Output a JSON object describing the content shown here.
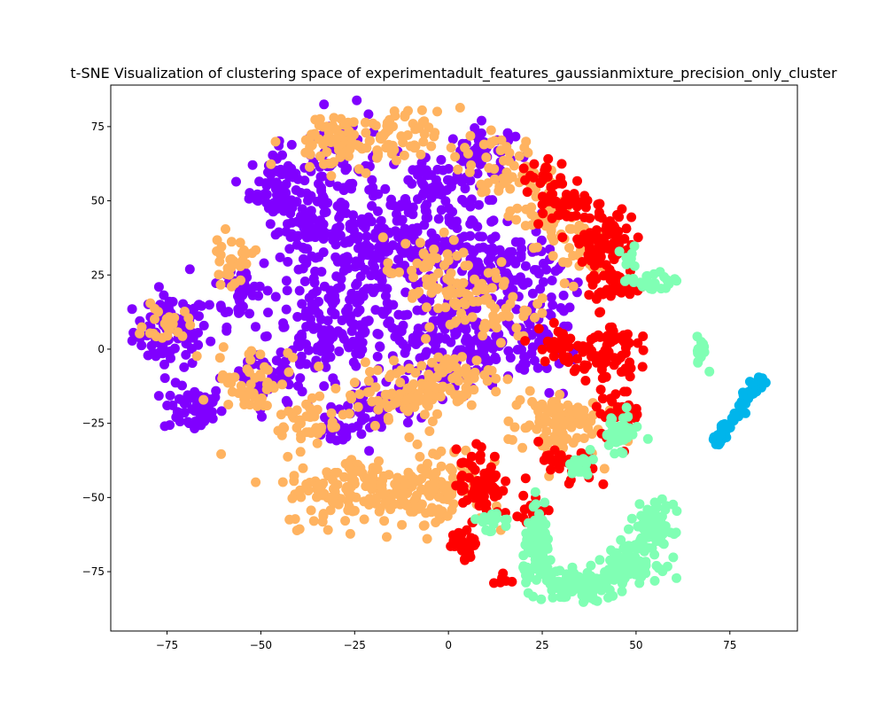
{
  "chart_data": {
    "type": "scatter",
    "title": "t-SNE Visualization of clustering space of experimentadult_features_gaussianmixture_precision_only_cluster",
    "xlabel": "",
    "ylabel": "",
    "xlim": [
      -90,
      93
    ],
    "ylim": [
      -95,
      89
    ],
    "xticks": [
      -75,
      -50,
      -25,
      0,
      25,
      50,
      75
    ],
    "yticks": [
      -75,
      -50,
      -25,
      0,
      25,
      50,
      75
    ],
    "xtick_labels": [
      "−75",
      "−50",
      "−25",
      "0",
      "25",
      "50",
      "75"
    ],
    "ytick_labels": [
      "−75",
      "−50",
      "−25",
      "0",
      "25",
      "50",
      "75"
    ],
    "grid": false,
    "legend": "none",
    "series": [
      {
        "color": "#8000ff",
        "clusters": [
          {
            "cx": -74,
            "cy": 6,
            "sx": 5,
            "sy": 6,
            "n": 90
          },
          {
            "cx": -68,
            "cy": -20,
            "sx": 4,
            "sy": 4,
            "n": 55
          },
          {
            "cx": -55,
            "cy": 20,
            "sx": 4,
            "sy": 6,
            "n": 45
          },
          {
            "cx": -45,
            "cy": 55,
            "sx": 4,
            "sy": 6,
            "n": 70
          },
          {
            "cx": -38,
            "cy": 40,
            "sx": 5,
            "sy": 5,
            "n": 60
          },
          {
            "cx": -32,
            "cy": 5,
            "sx": 8,
            "sy": 10,
            "n": 130
          },
          {
            "cx": -28,
            "cy": 60,
            "sx": 6,
            "sy": 10,
            "n": 90
          },
          {
            "cx": -22,
            "cy": 30,
            "sx": 8,
            "sy": 8,
            "n": 100
          },
          {
            "cx": -20,
            "cy": -20,
            "sx": 6,
            "sy": 5,
            "n": 60
          },
          {
            "cx": -12,
            "cy": 40,
            "sx": 6,
            "sy": 8,
            "n": 80
          },
          {
            "cx": -10,
            "cy": 5,
            "sx": 7,
            "sy": 8,
            "n": 90
          },
          {
            "cx": -2,
            "cy": 55,
            "sx": 6,
            "sy": 5,
            "n": 60
          },
          {
            "cx": 5,
            "cy": 30,
            "sx": 7,
            "sy": 8,
            "n": 90
          },
          {
            "cx": 8,
            "cy": 0,
            "sx": 7,
            "sy": 6,
            "n": 90
          },
          {
            "cx": 10,
            "cy": 65,
            "sx": 5,
            "sy": 5,
            "n": 50
          },
          {
            "cx": 18,
            "cy": 25,
            "sx": 6,
            "sy": 8,
            "n": 70
          },
          {
            "cx": 25,
            "cy": 5,
            "sx": 5,
            "sy": 8,
            "n": 50
          },
          {
            "cx": -48,
            "cy": -10,
            "sx": 5,
            "sy": 6,
            "n": 50
          },
          {
            "cx": -30,
            "cy": -28,
            "sx": 3,
            "sy": 3,
            "n": 20
          }
        ]
      },
      {
        "color": "#ffb360",
        "clusters": [
          {
            "cx": -75,
            "cy": 8,
            "sx": 3,
            "sy": 3,
            "n": 25
          },
          {
            "cx": -58,
            "cy": 30,
            "sx": 3,
            "sy": 4,
            "n": 30
          },
          {
            "cx": -52,
            "cy": -10,
            "sx": 5,
            "sy": 6,
            "n": 50
          },
          {
            "cx": -32,
            "cy": 70,
            "sx": 6,
            "sy": 5,
            "n": 60
          },
          {
            "cx": -15,
            "cy": 70,
            "sx": 6,
            "sy": 5,
            "n": 60
          },
          {
            "cx": -15,
            "cy": -15,
            "sx": 8,
            "sy": 5,
            "n": 70
          },
          {
            "cx": -38,
            "cy": -25,
            "sx": 4,
            "sy": 4,
            "n": 35
          },
          {
            "cx": -20,
            "cy": -48,
            "sx": 12,
            "sy": 6,
            "n": 180
          },
          {
            "cx": -2,
            "cy": -45,
            "sx": 6,
            "sy": 7,
            "n": 80
          },
          {
            "cx": 0,
            "cy": -10,
            "sx": 6,
            "sy": 4,
            "n": 60
          },
          {
            "cx": 10,
            "cy": 15,
            "sx": 8,
            "sy": 7,
            "n": 70
          },
          {
            "cx": 15,
            "cy": 60,
            "sx": 6,
            "sy": 6,
            "n": 60
          },
          {
            "cx": 28,
            "cy": -25,
            "sx": 6,
            "sy": 6,
            "n": 90
          },
          {
            "cx": 35,
            "cy": 35,
            "sx": 5,
            "sy": 6,
            "n": 40
          },
          {
            "cx": 25,
            "cy": 45,
            "sx": 4,
            "sy": 4,
            "n": 25
          },
          {
            "cx": -5,
            "cy": 25,
            "sx": 6,
            "sy": 6,
            "n": 50
          }
        ]
      },
      {
        "color": "#ff0000",
        "clusters": [
          {
            "cx": 8,
            "cy": -45,
            "sx": 3,
            "sy": 6,
            "n": 70
          },
          {
            "cx": 5,
            "cy": -65,
            "sx": 2,
            "sy": 3,
            "n": 25
          },
          {
            "cx": 30,
            "cy": 50,
            "sx": 4,
            "sy": 4,
            "n": 45
          },
          {
            "cx": 42,
            "cy": 38,
            "sx": 4,
            "sy": 5,
            "n": 70
          },
          {
            "cx": 42,
            "cy": 0,
            "sx": 4,
            "sy": 5,
            "n": 65
          },
          {
            "cx": 30,
            "cy": 0,
            "sx": 4,
            "sy": 5,
            "n": 30
          },
          {
            "cx": 45,
            "cy": 22,
            "sx": 4,
            "sy": 4,
            "n": 35
          },
          {
            "cx": 45,
            "cy": -22,
            "sx": 3,
            "sy": 4,
            "n": 35
          },
          {
            "cx": 32,
            "cy": -40,
            "sx": 4,
            "sy": 4,
            "n": 30
          },
          {
            "cx": 22,
            "cy": -55,
            "sx": 2,
            "sy": 3,
            "n": 15
          },
          {
            "cx": 25,
            "cy": 60,
            "sx": 3,
            "sy": 3,
            "n": 15
          },
          {
            "cx": 15,
            "cy": -78,
            "sx": 2,
            "sy": 2,
            "n": 6
          }
        ]
      },
      {
        "color": "#80ffb4",
        "clusters": [
          {
            "cx": 24,
            "cy": -68,
            "sx": 2,
            "sy": 6,
            "n": 90
          },
          {
            "cx": 35,
            "cy": -80,
            "sx": 5,
            "sy": 2.5,
            "n": 110
          },
          {
            "cx": 48,
            "cy": -72,
            "sx": 4,
            "sy": 3,
            "n": 90
          },
          {
            "cx": 55,
            "cy": -60,
            "sx": 2.5,
            "sy": 4,
            "n": 70
          },
          {
            "cx": 45,
            "cy": -28,
            "sx": 3,
            "sy": 3,
            "n": 45
          },
          {
            "cx": 35,
            "cy": -40,
            "sx": 2,
            "sy": 2,
            "n": 20
          },
          {
            "cx": 54,
            "cy": 22,
            "sx": 3,
            "sy": 2,
            "n": 25
          },
          {
            "cx": 67,
            "cy": 0,
            "sx": 1,
            "sy": 2.5,
            "n": 18
          },
          {
            "cx": 12,
            "cy": -58,
            "sx": 3,
            "sy": 2,
            "n": 15
          },
          {
            "cx": 48,
            "cy": 30,
            "sx": 1.5,
            "sy": 2,
            "n": 8
          }
        ]
      },
      {
        "color": "#00b5eb",
        "line": {
          "x0": 71,
          "y0": -31,
          "x1": 84,
          "y1": -9,
          "n": 70,
          "jitter": 0.9
        }
      }
    ]
  }
}
